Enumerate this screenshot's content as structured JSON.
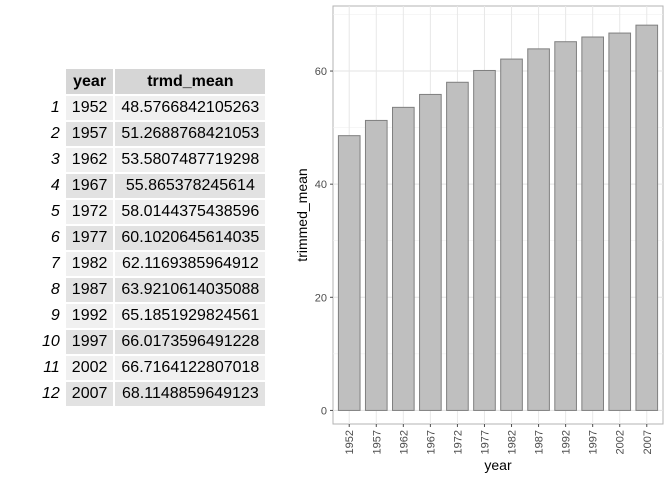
{
  "table": {
    "columns": [
      "year",
      "trmd_mean"
    ],
    "rows": [
      {
        "n": "1",
        "year": "1952",
        "trmd_mean": "48.5766842105263"
      },
      {
        "n": "2",
        "year": "1957",
        "trmd_mean": "51.2688768421053"
      },
      {
        "n": "3",
        "year": "1962",
        "trmd_mean": "53.5807487719298"
      },
      {
        "n": "4",
        "year": "1967",
        "trmd_mean": "55.865378245614"
      },
      {
        "n": "5",
        "year": "1972",
        "trmd_mean": "58.0144375438596"
      },
      {
        "n": "6",
        "year": "1977",
        "trmd_mean": "60.1020645614035"
      },
      {
        "n": "7",
        "year": "1982",
        "trmd_mean": "62.1169385964912"
      },
      {
        "n": "8",
        "year": "1987",
        "trmd_mean": "63.9210614035088"
      },
      {
        "n": "9",
        "year": "1992",
        "trmd_mean": "65.1851929824561"
      },
      {
        "n": "10",
        "year": "1997",
        "trmd_mean": "66.0173596491228"
      },
      {
        "n": "11",
        "year": "2002",
        "trmd_mean": "66.7164122807018"
      },
      {
        "n": "12",
        "year": "2007",
        "trmd_mean": "68.1148859649123"
      }
    ]
  },
  "chart_data": {
    "type": "bar",
    "categories": [
      "1952",
      "1957",
      "1962",
      "1967",
      "1972",
      "1977",
      "1982",
      "1987",
      "1992",
      "1997",
      "2002",
      "2007"
    ],
    "values": [
      48.5766842105263,
      51.2688768421053,
      53.5807487719298,
      55.865378245614,
      58.0144375438596,
      60.1020645614035,
      62.1169385964912,
      63.9210614035088,
      65.1851929824561,
      66.0173596491228,
      66.7164122807018,
      68.1148859649123
    ],
    "xlabel": "year",
    "ylabel": "trimmed_mean",
    "ylim": [
      -2.4,
      71.5
    ],
    "yticks": [
      0,
      20,
      40,
      60
    ],
    "grid": true,
    "bar_color": "#bfbfbf",
    "bar_outline": "#7f7f7f"
  }
}
